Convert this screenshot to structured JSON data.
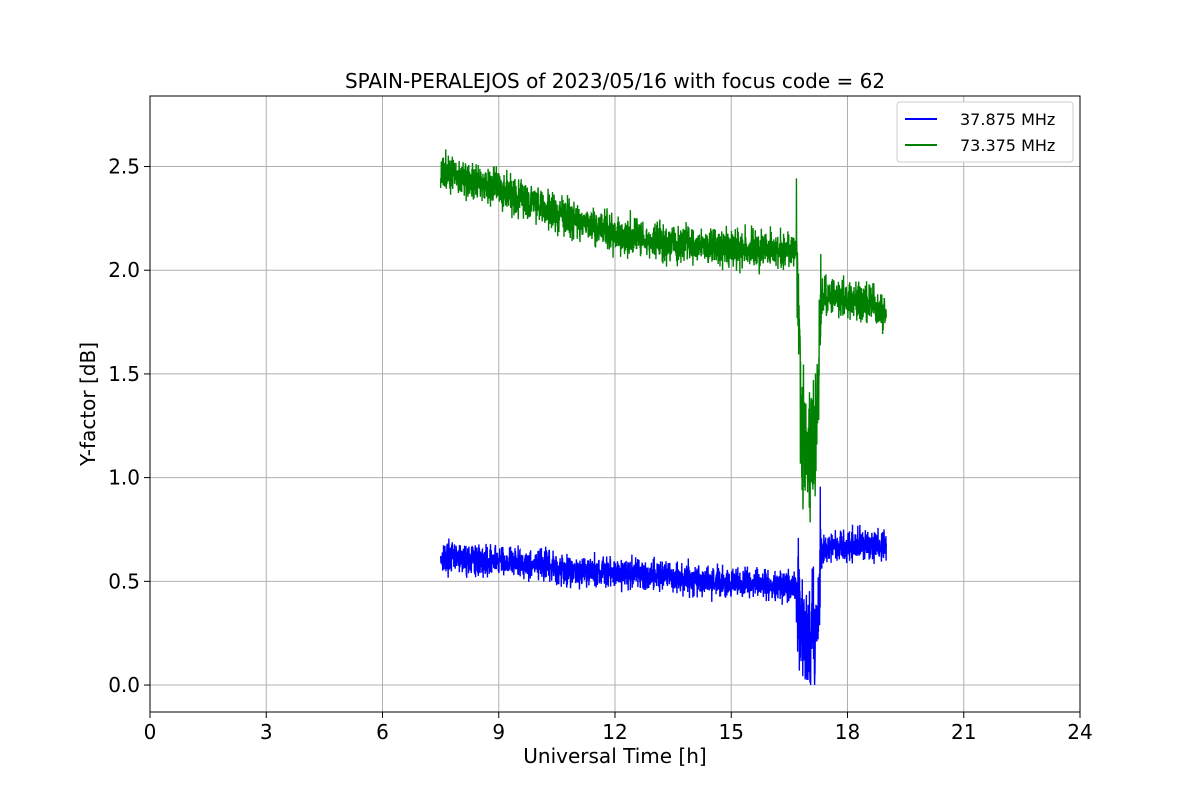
{
  "chart_data": {
    "type": "line",
    "title": "SPAIN-PERALEJOS of 2023/05/16 with focus code = 62",
    "xlabel": "Universal Time [h]",
    "ylabel": "Y-factor [dB]",
    "xlim": [
      0,
      24
    ],
    "ylim": [
      -0.13,
      2.84
    ],
    "xticks": [
      "0",
      "3",
      "6",
      "9",
      "12",
      "15",
      "18",
      "21",
      "24"
    ],
    "yticks": [
      "0.0",
      "0.5",
      "1.0",
      "1.5",
      "2.0",
      "2.5"
    ],
    "grid": true,
    "legend_position": "top-right",
    "series": [
      {
        "name": "37.875 MHz",
        "color": "#0000ff",
        "x": [
          7.5,
          8.0,
          8.5,
          9.0,
          9.5,
          10.0,
          10.5,
          11.0,
          11.5,
          12.0,
          12.5,
          13.0,
          13.5,
          14.0,
          14.5,
          15.0,
          15.5,
          16.0,
          16.5,
          16.7,
          16.8,
          17.0,
          17.2,
          17.3,
          17.5,
          18.0,
          18.5,
          19.0
        ],
        "values": [
          0.62,
          0.61,
          0.6,
          0.6,
          0.59,
          0.58,
          0.56,
          0.55,
          0.55,
          0.54,
          0.54,
          0.53,
          0.52,
          0.51,
          0.5,
          0.49,
          0.49,
          0.48,
          0.48,
          0.47,
          0.25,
          0.18,
          0.25,
          0.65,
          0.66,
          0.67,
          0.68,
          0.67
        ],
        "spread": 0.08
      },
      {
        "name": "73.375 MHz",
        "color": "#008000",
        "x": [
          7.5,
          8.0,
          8.5,
          9.0,
          9.5,
          10.0,
          10.5,
          11.0,
          11.5,
          12.0,
          12.5,
          13.0,
          13.5,
          14.0,
          14.5,
          15.0,
          15.5,
          16.0,
          16.5,
          16.7,
          16.8,
          17.0,
          17.2,
          17.3,
          17.5,
          18.0,
          18.5,
          19.0
        ],
        "values": [
          2.48,
          2.45,
          2.42,
          2.39,
          2.35,
          2.32,
          2.28,
          2.24,
          2.21,
          2.18,
          2.16,
          2.14,
          2.13,
          2.12,
          2.11,
          2.1,
          2.1,
          2.1,
          2.1,
          2.1,
          1.2,
          1.1,
          1.2,
          1.86,
          1.87,
          1.86,
          1.85,
          1.8
        ],
        "spread": 0.1
      }
    ]
  }
}
